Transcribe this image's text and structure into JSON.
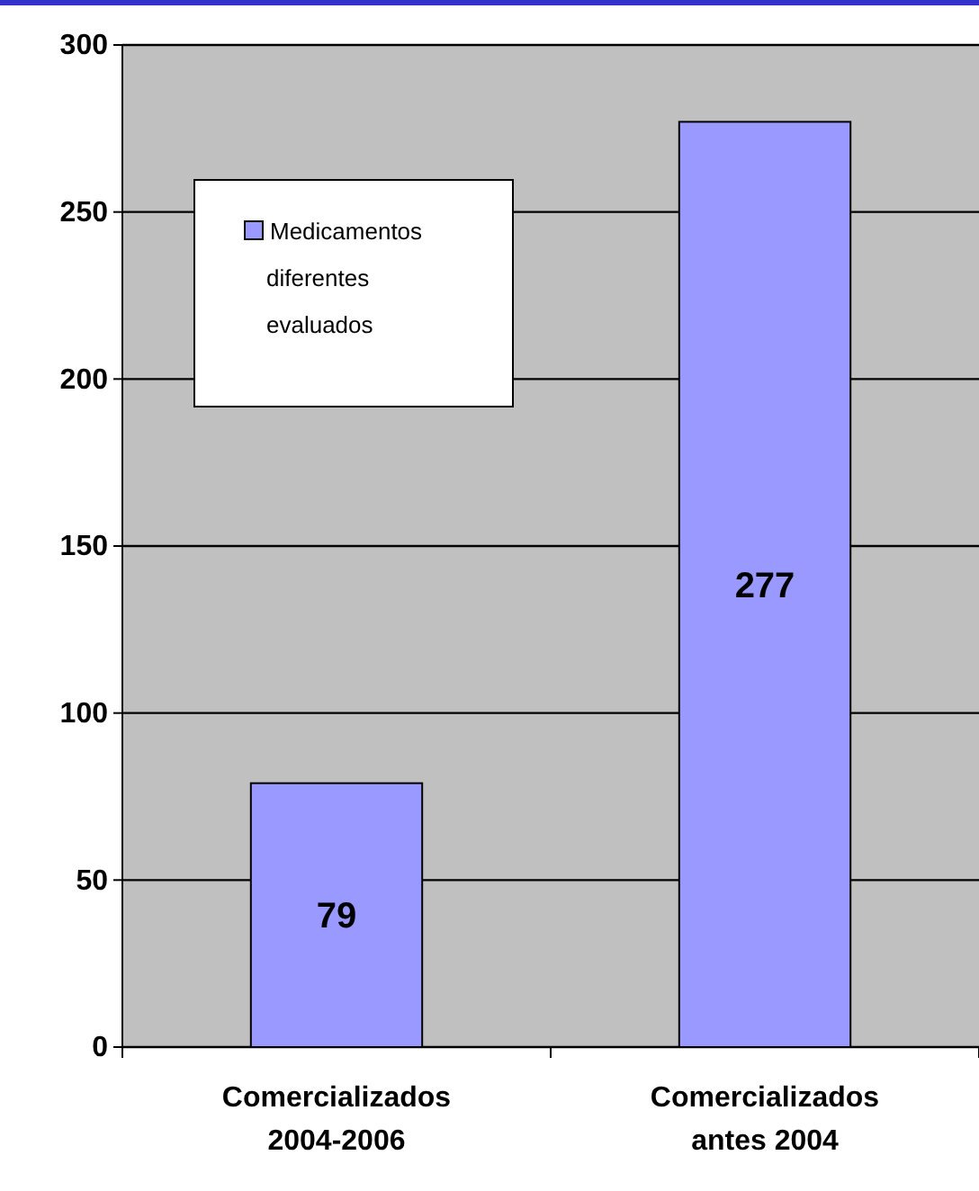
{
  "chart_data": {
    "type": "bar",
    "categories": [
      "Comercializados 2004-2006",
      "Comercializados antes 2004"
    ],
    "series": [
      {
        "name": "Medicamentos diferentes evaluados",
        "color": "#9999ff",
        "values": [
          79,
          277
        ]
      }
    ],
    "ylim": [
      0,
      300
    ],
    "yticks": [
      0,
      50,
      100,
      150,
      200,
      250,
      300
    ],
    "grid": "y",
    "legend": "top left",
    "data_labels": true
  }
}
